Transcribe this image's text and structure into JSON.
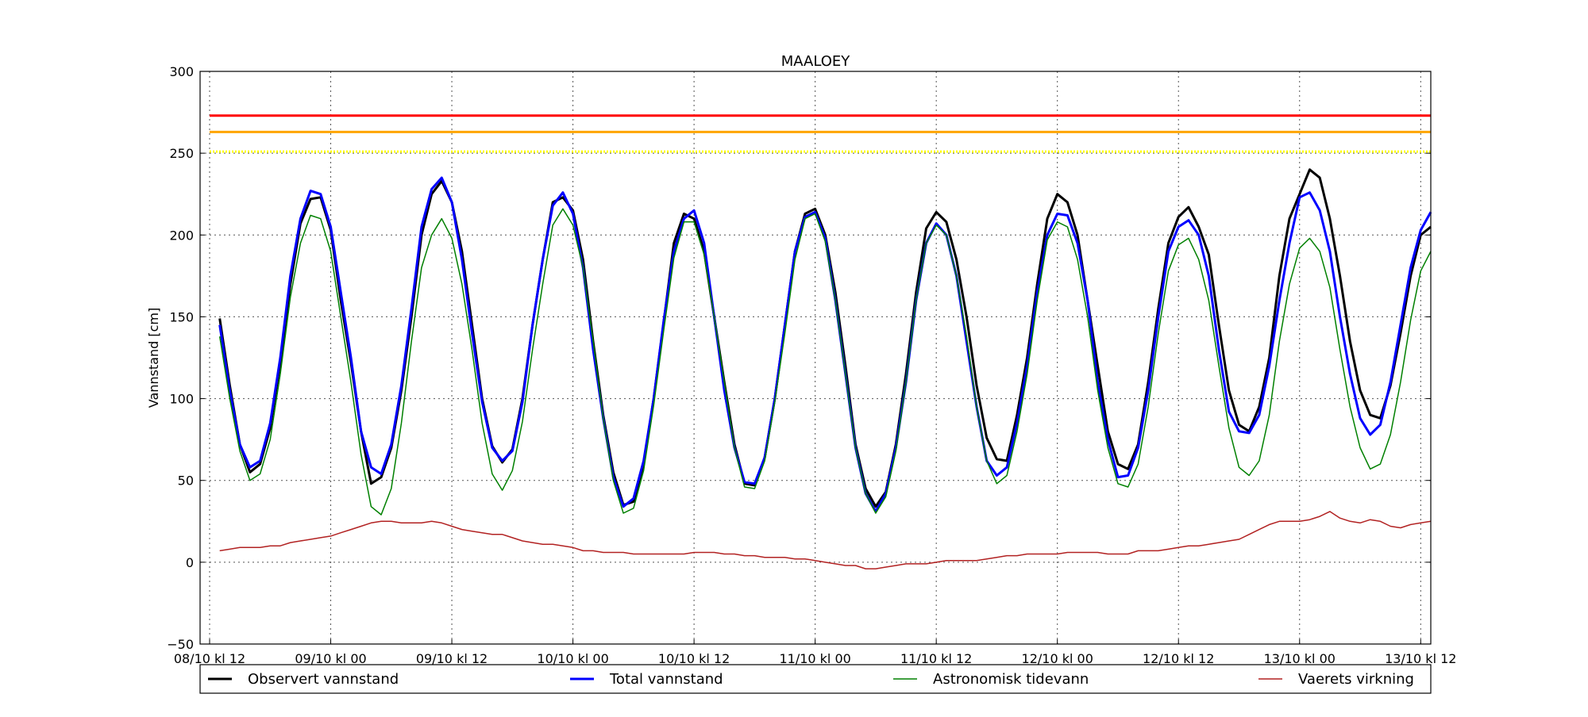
{
  "chart_data": {
    "type": "line",
    "title": "MAALOEY",
    "ylabel": "Vannstand [cm]",
    "xlabel": "",
    "ylim": [
      -50,
      300
    ],
    "yticks": [
      -50,
      0,
      50,
      100,
      150,
      200,
      250,
      300
    ],
    "xticks": [
      {
        "label": "08/10 kl 12",
        "t": 0
      },
      {
        "label": "09/10 kl 00",
        "t": 12
      },
      {
        "label": "09/10 kl 12",
        "t": 24
      },
      {
        "label": "10/10 kl 00",
        "t": 36
      },
      {
        "label": "10/10 kl 12",
        "t": 48
      },
      {
        "label": "11/10 kl 00",
        "t": 60
      },
      {
        "label": "11/10 kl 12",
        "t": 72
      },
      {
        "label": "12/10 kl 00",
        "t": 84
      },
      {
        "label": "12/10 kl 12",
        "t": 96
      },
      {
        "label": "13/10 kl 00",
        "t": 108
      },
      {
        "label": "13/10 kl 12",
        "t": 120
      }
    ],
    "xlim_hours": [
      0,
      121
    ],
    "grid": true,
    "legend_position": "bottom",
    "threshold_lines": [
      {
        "value": 273,
        "color": "#ff0000",
        "style": "solid"
      },
      {
        "value": 263,
        "color": "#ffa500",
        "style": "solid"
      },
      {
        "value": 251,
        "color": "#ffff00",
        "style": "dotted"
      }
    ],
    "x_hours_start": 1,
    "x_hours_step": 1,
    "series": [
      {
        "name": "Observert vannstand",
        "color": "#000000",
        "width": 3,
        "values": [
          149,
          108,
          72,
          55,
          60,
          82,
          122,
          170,
          207,
          222,
          223,
          203,
          160,
          122,
          80,
          48,
          52,
          70,
          105,
          150,
          200,
          225,
          233,
          220,
          190,
          145,
          100,
          71,
          61,
          69,
          100,
          145,
          185,
          220,
          223,
          215,
          185,
          135,
          90,
          55,
          35,
          37,
          60,
          100,
          147,
          195,
          213,
          210,
          190,
          150,
          110,
          72,
          48,
          47,
          64,
          100,
          145,
          190,
          213,
          216,
          200,
          165,
          120,
          72,
          45,
          34,
          43,
          72,
          115,
          165,
          204,
          214,
          208,
          185,
          150,
          108,
          76,
          63,
          62,
          90,
          125,
          170,
          210,
          225,
          220,
          200,
          160,
          120,
          80,
          60,
          57,
          72,
          110,
          155,
          195,
          211,
          217,
          205,
          188,
          145,
          105,
          84,
          80,
          95,
          125,
          175,
          210,
          225,
          240,
          235,
          210,
          175,
          135,
          105,
          90,
          88,
          108,
          140,
          175,
          200,
          205
        ]
      },
      {
        "name": "Total vannstand",
        "color": "#0000ff",
        "width": 3,
        "values": [
          145,
          105,
          72,
          58,
          62,
          85,
          125,
          175,
          210,
          227,
          225,
          205,
          165,
          125,
          80,
          58,
          54,
          72,
          108,
          155,
          205,
          228,
          235,
          220,
          185,
          140,
          98,
          70,
          62,
          68,
          98,
          145,
          185,
          218,
          226,
          213,
          180,
          130,
          88,
          52,
          34,
          39,
          62,
          100,
          148,
          190,
          210,
          215,
          195,
          150,
          105,
          70,
          49,
          48,
          64,
          100,
          145,
          190,
          211,
          214,
          198,
          160,
          115,
          70,
          42,
          31,
          42,
          70,
          110,
          160,
          195,
          207,
          200,
          175,
          135,
          95,
          62,
          53,
          58,
          85,
          120,
          165,
          200,
          213,
          212,
          195,
          160,
          110,
          75,
          52,
          53,
          70,
          105,
          150,
          190,
          205,
          209,
          200,
          175,
          130,
          92,
          80,
          79,
          90,
          120,
          160,
          195,
          223,
          226,
          215,
          190,
          150,
          115,
          88,
          78,
          84,
          110,
          145,
          180,
          203,
          214
        ]
      },
      {
        "name": "Astronomisk tidevann",
        "color": "#008000",
        "width": 1.5,
        "values": [
          138,
          100,
          68,
          50,
          54,
          75,
          115,
          162,
          195,
          212,
          210,
          190,
          150,
          110,
          66,
          34,
          29,
          45,
          85,
          135,
          180,
          200,
          210,
          198,
          170,
          130,
          85,
          54,
          44,
          56,
          86,
          130,
          170,
          206,
          216,
          206,
          180,
          135,
          88,
          50,
          30,
          33,
          56,
          96,
          142,
          186,
          208,
          208,
          188,
          150,
          110,
          70,
          46,
          45,
          62,
          98,
          140,
          185,
          210,
          213,
          196,
          160,
          115,
          70,
          42,
          30,
          40,
          68,
          110,
          160,
          195,
          206,
          200,
          175,
          138,
          95,
          62,
          48,
          53,
          80,
          115,
          160,
          197,
          208,
          205,
          185,
          150,
          105,
          70,
          48,
          46,
          60,
          95,
          140,
          178,
          194,
          198,
          185,
          160,
          120,
          82,
          58,
          53,
          62,
          90,
          135,
          170,
          192,
          198,
          190,
          168,
          130,
          95,
          70,
          57,
          60,
          78,
          110,
          148,
          178,
          190
        ]
      },
      {
        "name": "Vaerets virkning",
        "color": "#b22222",
        "width": 1.5,
        "values": [
          7,
          8,
          9,
          9,
          9,
          10,
          10,
          12,
          13,
          14,
          15,
          16,
          18,
          20,
          22,
          24,
          25,
          25,
          24,
          24,
          24,
          25,
          24,
          22,
          20,
          19,
          18,
          17,
          17,
          15,
          13,
          12,
          11,
          11,
          10,
          9,
          7,
          7,
          6,
          6,
          6,
          5,
          5,
          5,
          5,
          5,
          5,
          6,
          6,
          6,
          5,
          5,
          4,
          4,
          3,
          3,
          3,
          2,
          2,
          1,
          0,
          -1,
          -2,
          -2,
          -4,
          -4,
          -3,
          -2,
          -1,
          -1,
          -1,
          0,
          1,
          1,
          1,
          1,
          2,
          3,
          4,
          4,
          5,
          5,
          5,
          5,
          6,
          6,
          6,
          6,
          5,
          5,
          5,
          7,
          7,
          7,
          8,
          9,
          10,
          10,
          11,
          12,
          13,
          14,
          17,
          20,
          23,
          25,
          25,
          25,
          26,
          28,
          31,
          27,
          25,
          24,
          26,
          25,
          22,
          21,
          23,
          24,
          25
        ]
      }
    ]
  }
}
